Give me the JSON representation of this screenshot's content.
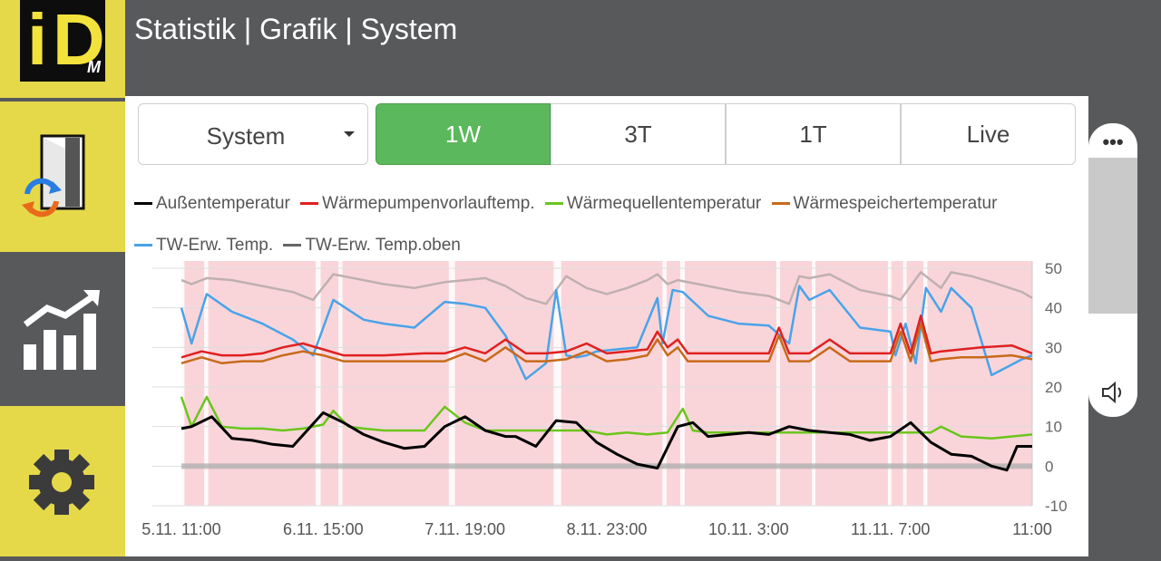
{
  "header": {
    "title": "Statistik | Grafik | System"
  },
  "logo": {
    "letters_i": "i",
    "letters_d": "D",
    "letters_m": "M"
  },
  "toolbar": {
    "dropdown_value": "System",
    "ranges": [
      "1W",
      "3T",
      "1T",
      "Live"
    ],
    "active_range": "1W"
  },
  "colors": {
    "accent_yellow": "#e5d94a",
    "sidebar_gray": "#58595b",
    "active_green": "#5cb85c",
    "band_pink": "#f9d5da",
    "band_green": "#e3f1e0"
  },
  "chart_data": {
    "type": "line",
    "x_tick_labels": [
      "5.11. 11:00",
      "6.11. 15:00",
      "7.11. 19:00",
      "8.11. 23:00",
      "10.11. 3:00",
      "11.11. 7:00",
      "11:00"
    ],
    "y_tick_labels": [
      "50",
      "40",
      "30",
      "20",
      "10",
      "0",
      "-10"
    ],
    "ylim": [
      -10,
      50
    ],
    "x_range_hours": [
      0,
      168
    ],
    "legend": [
      "Außentemperatur",
      "Wärmepumpenvorlauftemp.",
      "Wärmequellentemperatur",
      "Wärmespeichertemperatur",
      "TW-Erw. Temp.",
      "TW-Erw. Temp.oben"
    ],
    "series": [
      {
        "name": "Außentemperatur",
        "color": "#000000",
        "x": [
          0,
          2,
          6,
          10,
          14,
          18,
          22,
          28,
          32,
          36,
          40,
          44,
          48,
          52,
          56,
          60,
          64,
          66,
          70,
          74,
          78,
          82,
          86,
          90,
          94,
          98,
          101,
          104,
          108,
          112,
          116,
          120,
          124,
          128,
          132,
          136,
          140,
          144,
          148,
          152,
          156,
          160,
          163,
          165,
          168
        ],
        "y": [
          9.5,
          10,
          12.5,
          7,
          6.5,
          5.5,
          5,
          13.5,
          11,
          8,
          6,
          4.5,
          5,
          10,
          12.5,
          9,
          7.5,
          7.5,
          5,
          11.5,
          11,
          6,
          3,
          0.5,
          -0.5,
          10,
          11,
          7.5,
          8,
          8.5,
          8,
          10,
          9,
          8.5,
          8,
          6.5,
          7.5,
          11,
          6,
          3,
          2.5,
          0,
          -1,
          5,
          5
        ]
      },
      {
        "name": "Wärmepumpenvorlauftemp.",
        "color": "#e02020",
        "x": [
          0,
          4,
          8,
          12,
          16,
          20,
          24,
          28,
          32,
          36,
          40,
          48,
          52,
          56,
          60,
          64,
          68,
          72,
          76,
          80,
          84,
          88,
          92,
          94,
          96,
          98,
          100,
          104,
          108,
          112,
          116,
          118,
          120,
          124,
          128,
          132,
          136,
          140,
          142,
          144,
          146,
          148,
          150,
          154,
          158,
          164,
          168
        ],
        "y": [
          27.5,
          29,
          28,
          28,
          28.5,
          30,
          31,
          29.5,
          28,
          28,
          28,
          28.5,
          28.5,
          30,
          28.5,
          32,
          28.5,
          28.5,
          29,
          31,
          28.5,
          29,
          29.5,
          34,
          30,
          32,
          28.5,
          28.5,
          28.5,
          28.5,
          28.5,
          35,
          28.5,
          28.5,
          32,
          28.5,
          28.5,
          28.5,
          36,
          28.5,
          38,
          28.5,
          29,
          29.5,
          30,
          30.5,
          28.5
        ]
      },
      {
        "name": "Wärmequellentemperatur",
        "color": "#6cc51c",
        "x": [
          0,
          2,
          5,
          8,
          12,
          16,
          20,
          24,
          28,
          30,
          33,
          36,
          40,
          44,
          48,
          52,
          56,
          60,
          64,
          70,
          76,
          80,
          84,
          88,
          92,
          96,
          99,
          101,
          104,
          110,
          116,
          122,
          128,
          134,
          140,
          144,
          148,
          150,
          154,
          160,
          168
        ],
        "y": [
          17.5,
          10,
          17.5,
          10,
          9.5,
          9.5,
          9,
          9.5,
          10.5,
          14,
          10,
          9.5,
          9,
          9,
          9,
          15,
          11,
          9,
          9,
          9,
          9,
          9,
          8,
          8.5,
          8,
          8.5,
          14.5,
          9,
          8.5,
          8.5,
          8.5,
          8.5,
          8.5,
          8.5,
          8.5,
          8.5,
          8.5,
          10,
          7.5,
          7,
          8
        ]
      },
      {
        "name": "Wärmespeichertemperatur",
        "color": "#c86a1a",
        "x": [
          0,
          4,
          8,
          12,
          16,
          20,
          24,
          28,
          32,
          36,
          40,
          48,
          52,
          56,
          60,
          64,
          68,
          72,
          76,
          80,
          84,
          88,
          92,
          94,
          96,
          98,
          100,
          104,
          108,
          112,
          116,
          118,
          120,
          124,
          128,
          132,
          136,
          140,
          142,
          144,
          146,
          148,
          150,
          154,
          158,
          164,
          168
        ],
        "y": [
          26,
          27.5,
          26,
          26.5,
          26.5,
          28,
          29,
          28,
          26.5,
          26.5,
          26.5,
          26.5,
          26.5,
          28.5,
          26.5,
          30,
          26.5,
          26.5,
          27,
          29,
          26.5,
          27,
          28,
          32,
          28,
          30,
          26.5,
          26.5,
          26.5,
          26.5,
          26.5,
          33,
          26.5,
          26.5,
          30,
          26.5,
          26.5,
          26.5,
          34,
          26.5,
          36,
          26.5,
          27,
          27.5,
          27.5,
          28,
          27
        ]
      },
      {
        "name": "TW-Erw. Temp.",
        "color": "#4aa3e8",
        "x": [
          0,
          2,
          5,
          10,
          16,
          22,
          26,
          30,
          36,
          40,
          46,
          52,
          56,
          60,
          64,
          68,
          72,
          74,
          76,
          78,
          80,
          82,
          86,
          90,
          94,
          95,
          97,
          99,
          104,
          110,
          116,
          120,
          122,
          124,
          128,
          134,
          140,
          141,
          143,
          145,
          147,
          150,
          152,
          156,
          160,
          166,
          168
        ],
        "y": [
          40,
          31,
          43.5,
          39,
          36,
          32,
          28,
          42,
          37,
          36,
          35,
          41.5,
          41,
          40,
          33,
          22,
          26,
          44.5,
          28,
          27.5,
          28,
          29,
          29.5,
          30,
          42.5,
          31,
          44.5,
          44,
          38,
          36,
          35.5,
          31,
          45.5,
          42,
          44.5,
          35,
          34,
          28,
          36,
          26,
          45,
          39,
          45,
          40,
          23,
          27,
          28
        ]
      },
      {
        "name": "TW-Erw. Temp.oben",
        "color": "#bfb0b0",
        "x": [
          0,
          2,
          5,
          10,
          16,
          22,
          26,
          30,
          36,
          40,
          46,
          52,
          56,
          60,
          64,
          68,
          72,
          76,
          80,
          84,
          88,
          92,
          94,
          96,
          98,
          104,
          110,
          116,
          120,
          122,
          124,
          128,
          134,
          140,
          142,
          144,
          146,
          150,
          152,
          156,
          160,
          166,
          168
        ],
        "y": [
          47,
          46,
          47.5,
          47,
          45.5,
          44,
          42,
          48.5,
          47,
          46,
          45,
          46.5,
          47,
          47.5,
          45.5,
          42.5,
          41,
          48,
          45,
          43.5,
          45,
          47,
          48.5,
          46,
          47,
          45.5,
          44,
          43,
          41,
          48,
          47.5,
          48.5,
          44.5,
          43,
          42,
          45.5,
          49,
          45,
          49,
          48,
          46.5,
          44,
          42.5
        ]
      }
    ],
    "grid": true
  },
  "volume_panel": {
    "dots": "•••",
    "level_percent": 53
  }
}
